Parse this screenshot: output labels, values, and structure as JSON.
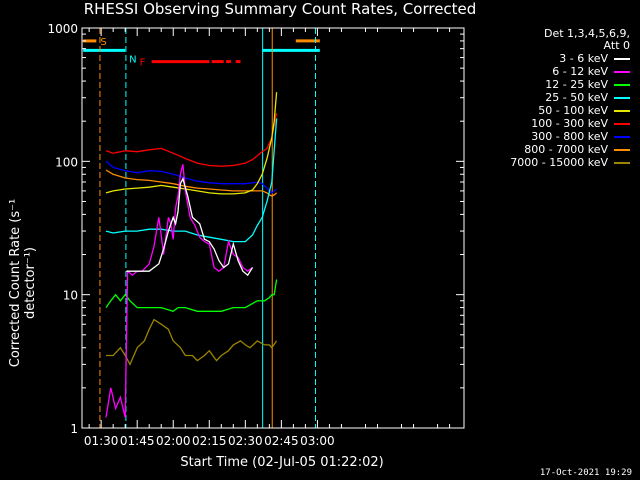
{
  "chart_data": {
    "type": "line",
    "title": "RHESSI Observing Summary Count Rates, Corrected",
    "xlabel": "Start Time (02-Jul-05 01:22:02)",
    "ylabel": "Corrected Count Rate (s⁻¹ detector⁻¹)",
    "timestamp": "17-Oct-2021 19:29",
    "yscale": "log",
    "ylim": [
      1,
      1000
    ],
    "xlim_minutes": [
      22.03,
      181
    ],
    "y_ticks": [
      "1",
      "10",
      "100",
      "1000"
    ],
    "x_ticks": [
      {
        "label": "01:30",
        "min": 30
      },
      {
        "label": "01:45",
        "min": 45
      },
      {
        "label": "02:00",
        "min": 60
      },
      {
        "label": "02:15",
        "min": 75
      },
      {
        "label": "02:30",
        "min": 90
      },
      {
        "label": "02:45",
        "min": 105
      },
      {
        "label": "03:00",
        "min": 120
      }
    ],
    "legend": {
      "title_lines": [
        "Det 1,3,4,5,6,9,",
        "Att 0"
      ],
      "entries": [
        {
          "label": "3 - 6 keV",
          "color": "#ffffff"
        },
        {
          "label": "6 - 12 keV",
          "color": "#ff00ff"
        },
        {
          "label": "12 - 25 keV",
          "color": "#00ff00"
        },
        {
          "label": "25 - 50 keV",
          "color": "#00ffff"
        },
        {
          "label": "50 - 100 keV",
          "color": "#e6e600"
        },
        {
          "label": "100 - 300 keV",
          "color": "#ff0000"
        },
        {
          "label": "300 - 800 keV",
          "color": "#0000ff"
        },
        {
          "label": "800 - 7000 keV",
          "color": "#ff8c00"
        },
        {
          "label": "7000 - 15000 keV",
          "color": "#9a8400"
        }
      ]
    },
    "flags": [
      {
        "letter": "S",
        "color": "#ff8c00",
        "segments_min": [
          [
            22.5,
            28
          ],
          [
            111,
            121
          ]
        ],
        "y": 800
      },
      {
        "letter": "N",
        "color": "#00ffff",
        "segments_min": [
          [
            22.5,
            40
          ],
          [
            97,
            121
          ]
        ],
        "y": 680
      },
      {
        "letter": "F",
        "color": "#ff0000",
        "segments_min": [
          [
            51,
            75
          ],
          [
            76,
            81
          ],
          [
            82,
            84
          ],
          [
            86,
            88
          ]
        ],
        "y": 560
      }
    ],
    "vlines": [
      {
        "min": 29.5,
        "color": "#ff8c00",
        "dash": true
      },
      {
        "min": 40.3,
        "color": "#00ffff",
        "dash": true
      },
      {
        "min": 97.2,
        "color": "#00ffff",
        "dash": false
      },
      {
        "min": 101.2,
        "color": "#ff8c00",
        "dash": false
      },
      {
        "min": 119.2,
        "color": "#00ffff",
        "dash": true
      }
    ],
    "series": [
      {
        "name": "3 - 6 keV",
        "color": "#ffffff",
        "x": [
          40.5,
          50,
          54,
          56,
          58,
          60,
          61,
          62,
          63,
          64,
          66,
          68,
          71,
          73,
          75,
          77,
          79,
          81,
          83,
          85,
          87,
          89,
          91,
          93
        ],
        "y": [
          15,
          15,
          17,
          22,
          30,
          38,
          34,
          42,
          68,
          74,
          55,
          38,
          34,
          26,
          25,
          22,
          18,
          16,
          17,
          24,
          18,
          15,
          14,
          16
        ]
      },
      {
        "name": "6 - 12 keV",
        "color": "#ff00ff",
        "x": [
          32,
          34,
          36,
          38,
          40,
          41,
          43,
          45,
          47,
          50,
          52,
          54,
          55,
          56,
          58,
          59,
          60,
          61,
          62,
          63,
          64,
          65,
          67,
          69,
          71,
          73,
          75,
          77,
          79,
          81,
          83,
          85,
          87,
          89,
          91,
          93
        ],
        "y": [
          1.2,
          2.0,
          1.4,
          1.7,
          1.2,
          15,
          14,
          15,
          15,
          17,
          23,
          38,
          28,
          20,
          38,
          34,
          26,
          45,
          55,
          80,
          95,
          60,
          38,
          33,
          27,
          25,
          24,
          16,
          15,
          16,
          25,
          20,
          19,
          16,
          15,
          16
        ]
      },
      {
        "name": "12 - 25 keV",
        "color": "#00ff00",
        "x": [
          32,
          34,
          36,
          38,
          40,
          42,
          45,
          50,
          55,
          60,
          62,
          65,
          70,
          75,
          80,
          85,
          90,
          95,
          98,
          100,
          101,
          102,
          103
        ],
        "y": [
          8,
          9,
          10,
          9,
          10,
          9,
          8,
          8,
          8,
          7.5,
          8,
          8,
          7.5,
          7.5,
          7.5,
          8,
          8,
          9,
          9,
          9.5,
          10,
          10,
          13
        ]
      },
      {
        "name": "25 - 50 keV",
        "color": "#00ffff",
        "x": [
          32,
          35,
          40,
          45,
          50,
          55,
          60,
          65,
          70,
          75,
          80,
          85,
          90,
          93,
          95,
          97,
          99,
          101,
          103
        ],
        "y": [
          30,
          29,
          30,
          30,
          31,
          31,
          30,
          30,
          28,
          27,
          26,
          25,
          25,
          28,
          33,
          38,
          50,
          70,
          210
        ]
      },
      {
        "name": "50 - 100 keV",
        "color": "#e6e600",
        "x": [
          32,
          35,
          40,
          45,
          50,
          55,
          60,
          65,
          70,
          75,
          80,
          85,
          90,
          93,
          95,
          97,
          99,
          101,
          102,
          103
        ],
        "y": [
          58,
          60,
          62,
          63,
          64,
          66,
          64,
          62,
          60,
          58,
          57,
          57,
          58,
          61,
          68,
          80,
          105,
          150,
          200,
          330
        ]
      },
      {
        "name": "100 - 300 keV",
        "color": "#ff0000",
        "x": [
          32,
          35,
          40,
          45,
          50,
          55,
          60,
          65,
          70,
          75,
          80,
          85,
          90,
          93,
          95,
          97,
          99,
          101,
          103
        ],
        "y": [
          120,
          115,
          120,
          118,
          122,
          125,
          115,
          105,
          97,
          93,
          92,
          93,
          97,
          103,
          110,
          118,
          125,
          150,
          230
        ]
      },
      {
        "name": "300 - 800 keV",
        "color": "#0000ff",
        "x": [
          32,
          35,
          40,
          45,
          50,
          55,
          60,
          65,
          70,
          75,
          80,
          85,
          90,
          93,
          95,
          97,
          99,
          100,
          101,
          102,
          103
        ],
        "y": [
          100,
          90,
          85,
          82,
          85,
          84,
          80,
          75,
          71,
          69,
          68,
          68,
          68,
          69,
          70,
          68,
          63,
          60,
          58,
          60,
          62
        ]
      },
      {
        "name": "800 - 7000 keV",
        "color": "#ff8c00",
        "x": [
          32,
          35,
          40,
          45,
          50,
          55,
          60,
          65,
          70,
          75,
          80,
          85,
          90,
          93,
          95,
          97,
          99,
          100,
          101,
          102,
          103
        ],
        "y": [
          86,
          80,
          75,
          73,
          72,
          70,
          68,
          65,
          63,
          62,
          61,
          60,
          60,
          60,
          60,
          60,
          58,
          56,
          55,
          56,
          58
        ]
      },
      {
        "name": "7000 - 15000 keV",
        "color": "#9a8400",
        "x": [
          32,
          35,
          38,
          40,
          42,
          45,
          48,
          50,
          52,
          55,
          58,
          60,
          63,
          65,
          68,
          70,
          73,
          75,
          78,
          80,
          83,
          85,
          88,
          90,
          92,
          95,
          98,
          100,
          101,
          103
        ],
        "y": [
          3.5,
          3.5,
          4.0,
          3.5,
          3.0,
          4.0,
          4.5,
          5.5,
          6.5,
          6.0,
          5.5,
          4.5,
          4.0,
          3.5,
          3.5,
          3.2,
          3.5,
          3.8,
          3.2,
          3.5,
          3.8,
          4.2,
          4.5,
          4.2,
          4.0,
          4.5,
          4.2,
          4.2,
          4.0,
          4.5
        ]
      }
    ]
  }
}
